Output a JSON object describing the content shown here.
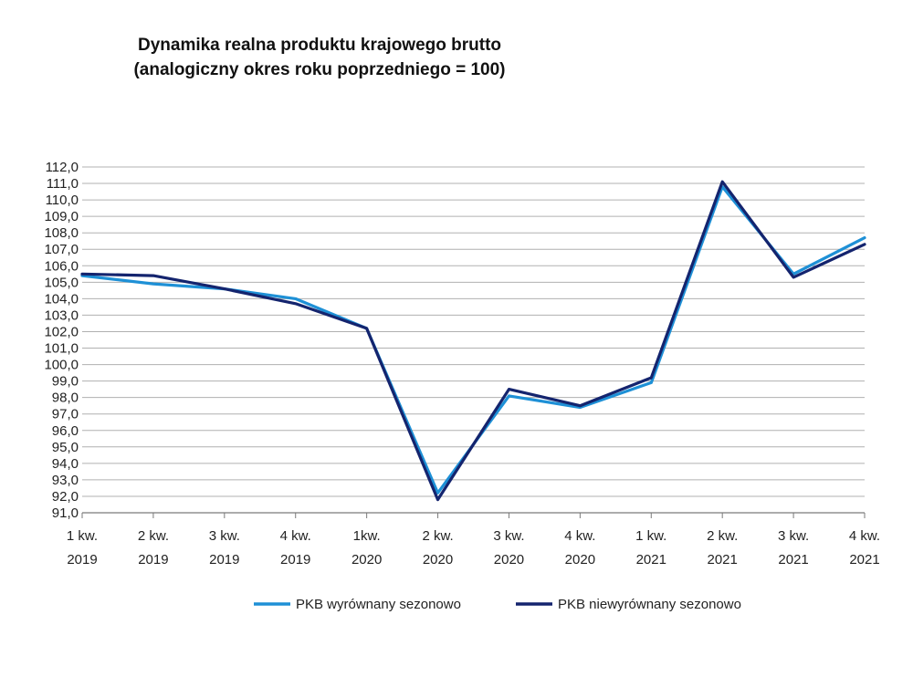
{
  "chart_data": {
    "type": "line",
    "title": "Dynamika realna produktu krajowego brutto",
    "subtitle": "(analogiczny okres roku poprzedniego = 100)",
    "xlabel": "",
    "ylabel": "",
    "ylim": [
      91.0,
      112.0
    ],
    "y_ticks": [
      "91,0",
      "92,0",
      "93,0",
      "94,0",
      "95,0",
      "96,0",
      "97,0",
      "98,0",
      "99,0",
      "100,0",
      "101,0",
      "102,0",
      "103,0",
      "104,0",
      "105,0",
      "106,0",
      "107,0",
      "108,0",
      "109,0",
      "110,0",
      "111,0",
      "112,0"
    ],
    "categories": [
      {
        "q": "1 kw.",
        "y": "2019"
      },
      {
        "q": "2 kw.",
        "y": "2019"
      },
      {
        "q": "3 kw.",
        "y": "2019"
      },
      {
        "q": "4 kw.",
        "y": "2019"
      },
      {
        "q": "1kw.",
        "y": "2020"
      },
      {
        "q": "2 kw.",
        "y": "2020"
      },
      {
        "q": "3 kw.",
        "y": "2020"
      },
      {
        "q": "4 kw.",
        "y": "2020"
      },
      {
        "q": "1 kw.",
        "y": "2021"
      },
      {
        "q": "2 kw.",
        "y": "2021"
      },
      {
        "q": "3 kw.",
        "y": "2021"
      },
      {
        "q": "4 kw.",
        "y": "2021"
      }
    ],
    "series": [
      {
        "name": "PKB wyrównany sezonowo",
        "color": "#1e90d6",
        "values": [
          105.4,
          104.9,
          104.6,
          104.0,
          102.2,
          92.2,
          98.1,
          97.4,
          98.9,
          110.8,
          105.5,
          107.7
        ]
      },
      {
        "name": "PKB niewyrównany sezonowo",
        "color": "#14246e",
        "values": [
          105.5,
          105.4,
          104.6,
          103.7,
          102.2,
          91.8,
          98.5,
          97.5,
          99.2,
          111.1,
          105.3,
          107.3
        ]
      }
    ],
    "grid": true,
    "legend": "bottom-center"
  }
}
